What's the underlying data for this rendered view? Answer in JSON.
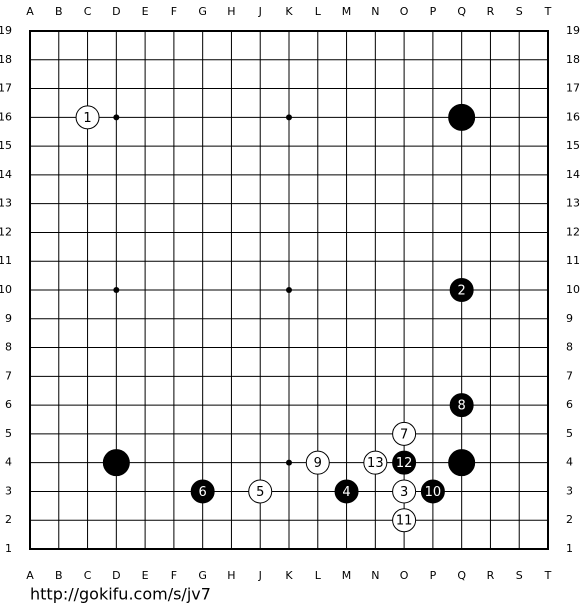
{
  "board": {
    "columns": [
      "A",
      "B",
      "C",
      "D",
      "E",
      "F",
      "G",
      "H",
      "J",
      "K",
      "L",
      "M",
      "N",
      "O",
      "P",
      "Q",
      "R",
      "S",
      "T"
    ],
    "rows": [
      19,
      18,
      17,
      16,
      15,
      14,
      13,
      12,
      11,
      10,
      9,
      8,
      7,
      6,
      5,
      4,
      3,
      2,
      1
    ],
    "stones": [
      {
        "color": "black",
        "col": "Q",
        "row": 16
      },
      {
        "color": "black",
        "col": "D",
        "row": 4
      },
      {
        "color": "black",
        "col": "Q",
        "row": 4
      },
      {
        "color": "white",
        "col": "C",
        "row": 16,
        "move": 1
      },
      {
        "color": "black",
        "col": "Q",
        "row": 10,
        "move": 2
      },
      {
        "color": "white",
        "col": "O",
        "row": 3,
        "move": 3
      },
      {
        "color": "black",
        "col": "M",
        "row": 3,
        "move": 4
      },
      {
        "color": "white",
        "col": "J",
        "row": 3,
        "move": 5
      },
      {
        "color": "black",
        "col": "G",
        "row": 3,
        "move": 6
      },
      {
        "color": "white",
        "col": "O",
        "row": 5,
        "move": 7
      },
      {
        "color": "black",
        "col": "Q",
        "row": 6,
        "move": 8
      },
      {
        "color": "white",
        "col": "L",
        "row": 4,
        "move": 9
      },
      {
        "color": "black",
        "col": "P",
        "row": 3,
        "move": 10
      },
      {
        "color": "white",
        "col": "O",
        "row": 2,
        "move": 11
      },
      {
        "color": "black",
        "col": "O",
        "row": 4,
        "move": 12
      },
      {
        "color": "white",
        "col": "N",
        "row": 4,
        "move": 13
      }
    ]
  },
  "footer": {
    "url": "http://gokifu.com/s/jv7"
  }
}
